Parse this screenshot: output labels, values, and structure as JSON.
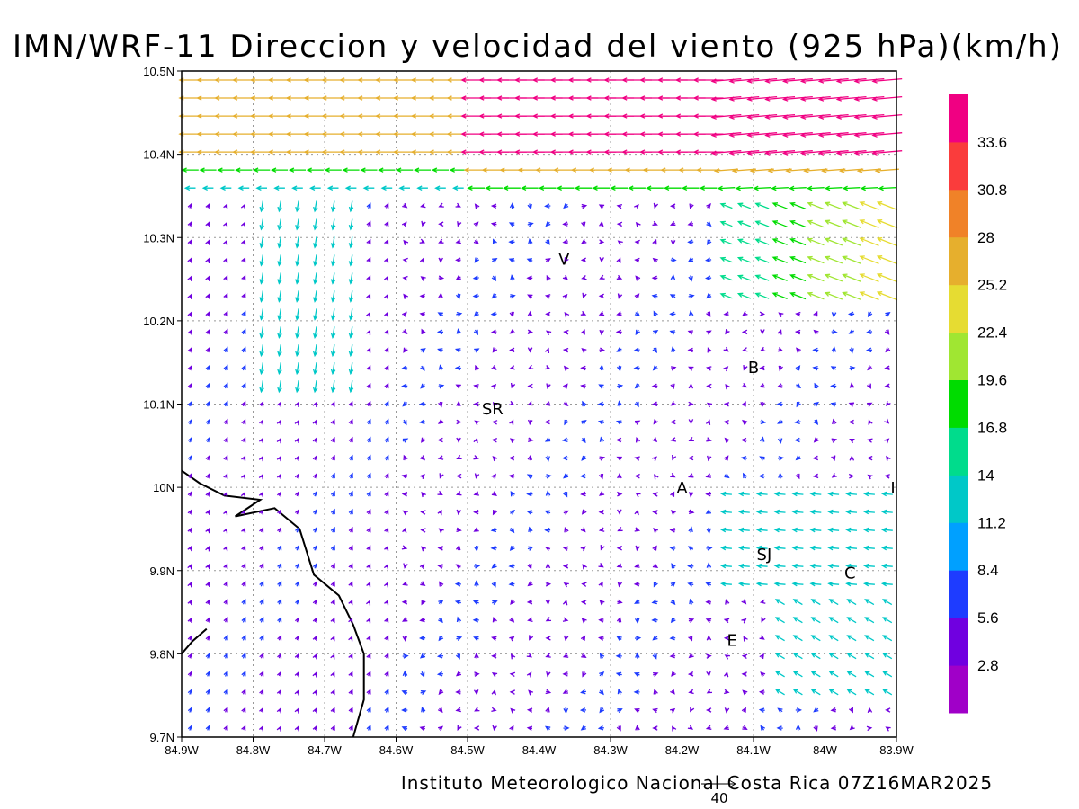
{
  "title": "IMN/WRF-11 Direccion y velocidad del viento (925 hPa)(km/h)",
  "credit": "Instituto Meteorologico Nacional Costa Rica 07Z16MAR2025",
  "reference_vector": {
    "value": "40"
  },
  "axes": {
    "lon_range": [
      -84.9,
      -83.9
    ],
    "lat_range": [
      9.7,
      10.5
    ],
    "x_ticks": [
      {
        "lon": -84.9,
        "label": "84.9W"
      },
      {
        "lon": -84.8,
        "label": "84.8W"
      },
      {
        "lon": -84.7,
        "label": "84.7W"
      },
      {
        "lon": -84.6,
        "label": "84.6W"
      },
      {
        "lon": -84.5,
        "label": "84.5W"
      },
      {
        "lon": -84.4,
        "label": "84.4W"
      },
      {
        "lon": -84.3,
        "label": "84.3W"
      },
      {
        "lon": -84.2,
        "label": "84.2W"
      },
      {
        "lon": -84.1,
        "label": "84.1W"
      },
      {
        "lon": -84.0,
        "label": "84W"
      },
      {
        "lon": -83.9,
        "label": "83.9W"
      }
    ],
    "y_ticks": [
      {
        "lat": 9.7,
        "label": "9.7N"
      },
      {
        "lat": 9.8,
        "label": "9.8N"
      },
      {
        "lat": 9.9,
        "label": "9.9N"
      },
      {
        "lat": 10.0,
        "label": "10N"
      },
      {
        "lat": 10.1,
        "label": "10.1N"
      },
      {
        "lat": 10.2,
        "label": "10.2N"
      },
      {
        "lat": 10.3,
        "label": "10.3N"
      },
      {
        "lat": 10.4,
        "label": "10.4N"
      },
      {
        "lat": 10.5,
        "label": "10.5N"
      }
    ],
    "grid": "dotted"
  },
  "colorbar": {
    "colors": [
      "#a000c8",
      "#7000e0",
      "#1e3cff",
      "#00a0ff",
      "#00c8c8",
      "#00dc8c",
      "#00dc00",
      "#a0e632",
      "#e6dc32",
      "#e6af2d",
      "#f08228",
      "#fa3c3c",
      "#f00082"
    ],
    "labels": [
      "2.8",
      "5.6",
      "8.4",
      "11.2",
      "14",
      "16.8",
      "19.6",
      "22.4",
      "25.2",
      "28",
      "30.8",
      "33.6"
    ]
  },
  "places": [
    {
      "label": "V",
      "lon": -84.365,
      "lat": 10.275
    },
    {
      "label": "SR",
      "lon": -84.465,
      "lat": 10.095
    },
    {
      "label": "B",
      "lon": -84.1,
      "lat": 10.145
    },
    {
      "label": "A",
      "lon": -84.2,
      "lat": 10.0
    },
    {
      "label": "SJ",
      "lon": -84.085,
      "lat": 9.92
    },
    {
      "label": "C",
      "lon": -83.965,
      "lat": 9.898
    },
    {
      "label": "E",
      "lon": -84.13,
      "lat": 9.817
    },
    {
      "label": "I",
      "lon": -83.905,
      "lat": 10.0
    }
  ],
  "coastline": [
    [
      [
        -84.9,
        10.02
      ],
      [
        -84.875,
        10.005
      ],
      [
        -84.84,
        9.99
      ],
      [
        -84.79,
        9.985
      ],
      [
        -84.825,
        9.965
      ],
      [
        -84.77,
        9.975
      ],
      [
        -84.735,
        9.95
      ],
      [
        -84.715,
        9.895
      ],
      [
        -84.68,
        9.87
      ],
      [
        -84.66,
        9.835
      ],
      [
        -84.645,
        9.8
      ],
      [
        -84.645,
        9.745
      ],
      [
        -84.66,
        9.7
      ]
    ],
    [
      [
        -84.9,
        9.8
      ],
      [
        -84.885,
        9.815
      ],
      [
        -84.865,
        9.83
      ]
    ]
  ]
}
